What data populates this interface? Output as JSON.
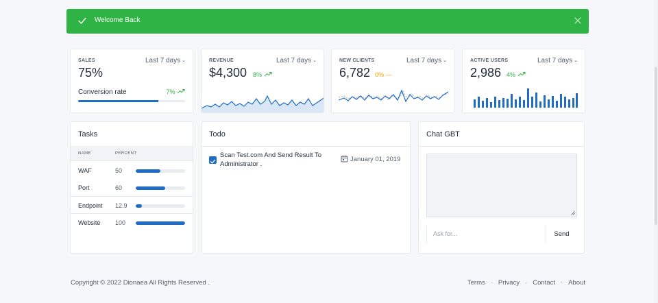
{
  "alert": {
    "message": "Welcome Back"
  },
  "stats": {
    "sales": {
      "label": "SALES",
      "period": "Last 7 days",
      "value": "75%",
      "sub_label": "Conversion rate",
      "sub_delta": "7%",
      "progress": 0.75
    },
    "revenue": {
      "label": "REVENUE",
      "period": "Last 7 days",
      "value": "$4,300",
      "delta": "8%"
    },
    "new_clients": {
      "label": "NEW CLIENTS",
      "period": "Last 7 days",
      "value": "6,782",
      "delta": "0%"
    },
    "active_users": {
      "label": "ACTIVE USERS",
      "period": "Last 7 days",
      "value": "2,986",
      "delta": "4%"
    }
  },
  "tasks": {
    "title": "Tasks",
    "columns": [
      "NAME",
      "PERCENT"
    ],
    "rows": [
      {
        "name": "WAF",
        "percent": "50",
        "value": 0.5
      },
      {
        "name": "Port",
        "percent": "60",
        "value": 0.6
      },
      {
        "name": "Endpoint",
        "percent": "12.9",
        "value": 0.129
      },
      {
        "name": "Website",
        "percent": "100",
        "value": 1.0
      }
    ]
  },
  "todo": {
    "title": "Todo",
    "items": [
      {
        "text": "Scan Test.com And Send Result To Administrator .",
        "date": "January 01, 2019",
        "checked": true
      }
    ]
  },
  "chat": {
    "title": "Chat GBT",
    "placeholder": "Ask for...",
    "send_label": "Send"
  },
  "footer": {
    "copyright": "Copyright © 2022 Dionaea All Rights Reserved .",
    "links": [
      "Terms",
      "Privacy",
      "Contact",
      "About"
    ]
  },
  "colors": {
    "success": "#2fb344",
    "primary": "#206bc4",
    "warning": "#f59f00"
  }
}
